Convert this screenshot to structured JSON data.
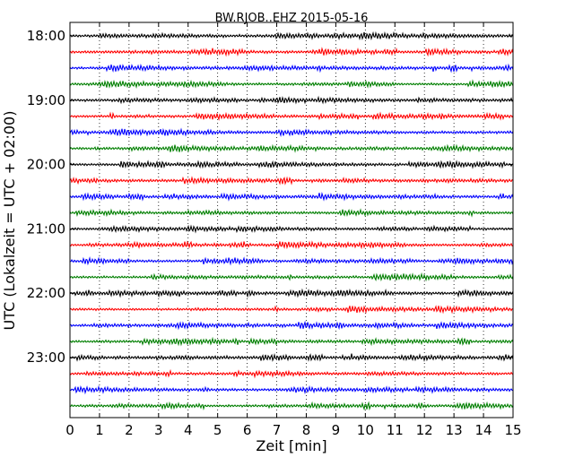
{
  "chart_data": {
    "type": "line",
    "title": "BW.RJOB..EHZ 2015-05-16",
    "xlabel": "Zeit  [min]",
    "ylabel": "UTC (Lokalzeit = UTC + 02:00)",
    "xlim": [
      0,
      15
    ],
    "x_ticks": [
      "0",
      "1",
      "2",
      "3",
      "4",
      "5",
      "6",
      "7",
      "8",
      "9",
      "10",
      "11",
      "12",
      "13",
      "14",
      "15"
    ],
    "y_tick_labels": [
      "18:00",
      "19:00",
      "20:00",
      "21:00",
      "22:00",
      "23:00"
    ],
    "grid": "vertical dotted",
    "trace_colors": [
      "#000000",
      "#ff0000",
      "#0000ff",
      "#007f00"
    ],
    "traces": [
      {
        "start": "18:00",
        "color": "#000000"
      },
      {
        "start": "18:15",
        "color": "#ff0000"
      },
      {
        "start": "18:30",
        "color": "#0000ff"
      },
      {
        "start": "18:45",
        "color": "#007f00"
      },
      {
        "start": "19:00",
        "color": "#000000"
      },
      {
        "start": "19:15",
        "color": "#ff0000"
      },
      {
        "start": "19:30",
        "color": "#0000ff"
      },
      {
        "start": "19:45",
        "color": "#007f00"
      },
      {
        "start": "20:00",
        "color": "#000000"
      },
      {
        "start": "20:15",
        "color": "#ff0000"
      },
      {
        "start": "20:30",
        "color": "#0000ff"
      },
      {
        "start": "20:45",
        "color": "#007f00"
      },
      {
        "start": "21:00",
        "color": "#000000"
      },
      {
        "start": "21:15",
        "color": "#ff0000"
      },
      {
        "start": "21:30",
        "color": "#0000ff"
      },
      {
        "start": "21:45",
        "color": "#007f00"
      },
      {
        "start": "22:00",
        "color": "#000000"
      },
      {
        "start": "22:15",
        "color": "#ff0000"
      },
      {
        "start": "22:30",
        "color": "#0000ff"
      },
      {
        "start": "22:45",
        "color": "#007f00"
      },
      {
        "start": "23:00",
        "color": "#000000"
      },
      {
        "start": "23:15",
        "color": "#ff0000"
      },
      {
        "start": "23:30",
        "color": "#0000ff"
      },
      {
        "start": "23:45",
        "color": "#007f00"
      }
    ]
  }
}
